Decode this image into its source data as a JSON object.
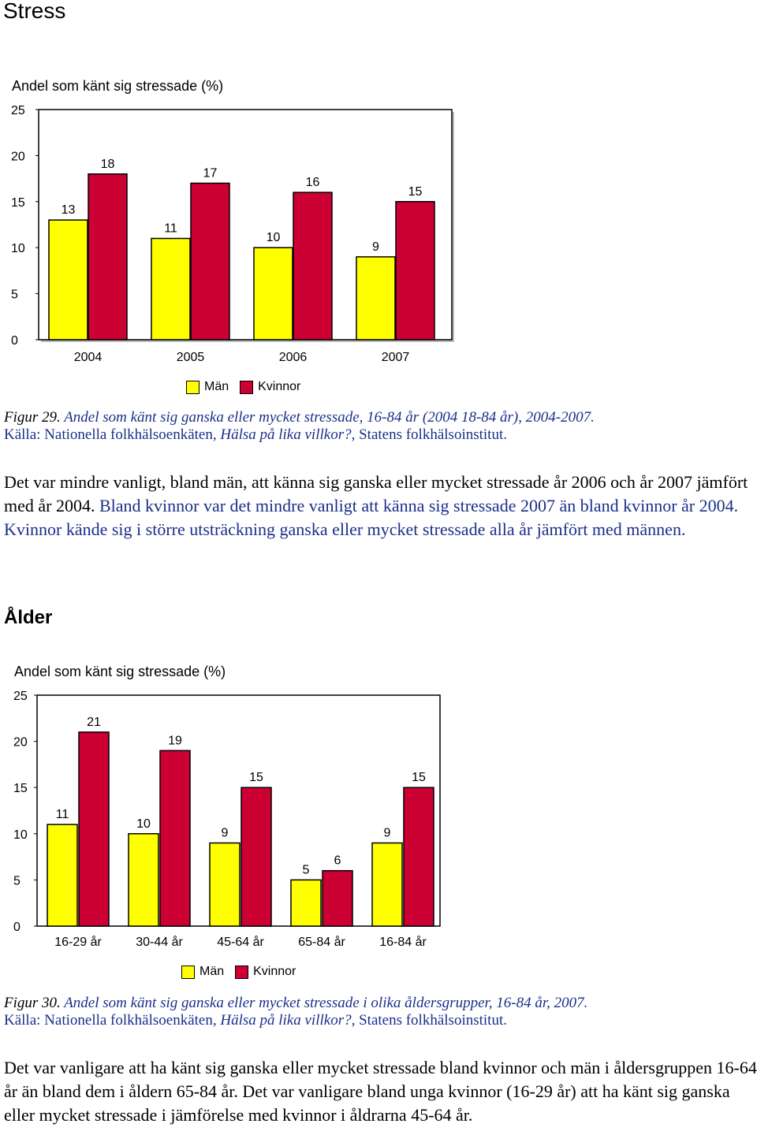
{
  "section1": {
    "title": "Stress",
    "chart": {
      "ylabel": "Andel som känt sig stressade (%)",
      "legend": [
        "Män",
        "Kvinnor"
      ]
    },
    "caption": {
      "label": "Figur 29.",
      "text": " Andel som känt sig ganska eller mycket stressade, 16-84 år (2004 18-84 år), 2004-2007.",
      "source_prefix": "Källa: Nationella folkhälsoenkäten, ",
      "source_italic": "Hälsa på lika villkor?",
      "source_suffix": ", Statens folkhälsoinstitut."
    },
    "paragraph": {
      "black_part": "Det var mindre vanligt, bland män, att känna sig ganska eller mycket stressade år 2006 och år 2007 jämfört med år 2004.",
      "blue_part": " Bland kvinnor var det mindre vanligt att känna sig stressade 2007 än bland kvinnor år 2004. Kvinnor kände sig i större utsträckning ganska eller mycket stressade alla år jämfört med männen."
    }
  },
  "section2": {
    "title": "Ålder",
    "chart": {
      "ylabel": "Andel som känt sig stressade (%)",
      "legend": [
        "Män",
        "Kvinnor"
      ]
    },
    "caption": {
      "label": "Figur 30.",
      "text": " Andel som känt sig ganska eller mycket stressade i olika åldersgrupper, 16-84 år, 2007.",
      "source_prefix": "Källa: Nationella folkhälsoenkäten, ",
      "source_italic": "Hälsa på lika villkor?",
      "source_suffix": ", Statens folkhälsoinstitut."
    },
    "paragraph": {
      "text": "Det var vanligare att ha känt sig ganska eller mycket stressade bland kvinnor och män i åldersgruppen 16-64 år än bland dem i åldern 65-84 år. Det var vanligare bland unga kvinnor (16-29 år) att ha känt sig ganska eller mycket stressade i jämförelse med kvinnor i åldrarna 45-64 år."
    }
  },
  "colors": {
    "men": "#ffff00",
    "women": "#cc0033",
    "caption_blue": "#1a2f8a"
  },
  "chart_data": [
    {
      "type": "bar",
      "categories": [
        "2004",
        "2005",
        "2006",
        "2007"
      ],
      "series": [
        {
          "name": "Män",
          "values": [
            13,
            11,
            10,
            9
          ]
        },
        {
          "name": "Kvinnor",
          "values": [
            18,
            17,
            16,
            15
          ]
        }
      ],
      "ylabel": "Andel som känt sig stressade (%)",
      "ylim": [
        0,
        25
      ],
      "yticks": [
        0,
        5,
        10,
        15,
        20,
        25
      ],
      "grid": false,
      "legend": "bottom"
    },
    {
      "type": "bar",
      "categories": [
        "16-29 år",
        "30-44 år",
        "45-64 år",
        "65-84 år",
        "16-84 år"
      ],
      "series": [
        {
          "name": "Män",
          "values": [
            11,
            10,
            9,
            5,
            9
          ]
        },
        {
          "name": "Kvinnor",
          "values": [
            21,
            19,
            15,
            6,
            15
          ]
        }
      ],
      "ylabel": "Andel som känt sig stressade (%)",
      "ylim": [
        0,
        25
      ],
      "yticks": [
        0,
        5,
        10,
        15,
        20,
        25
      ],
      "grid": false,
      "legend": "bottom"
    }
  ]
}
